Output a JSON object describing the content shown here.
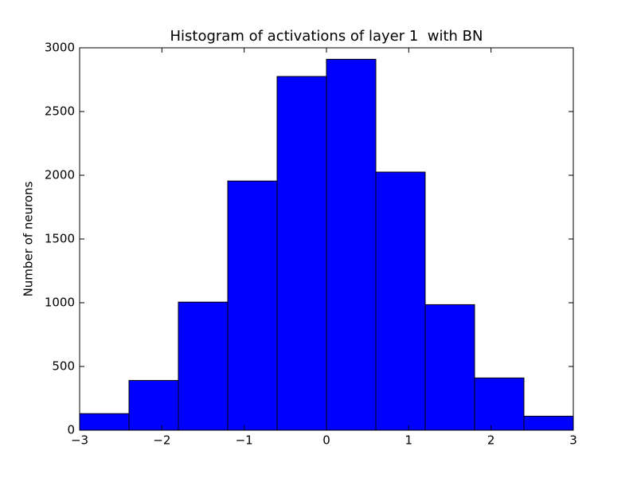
{
  "chart_data": {
    "type": "histogram",
    "title": "Histogram of activations of layer 1  with BN",
    "ylabel": "Number of neurons",
    "bins": [
      -3,
      -2.4,
      -1.8,
      -1.2,
      -0.6,
      0,
      0.6,
      1.2,
      1.8,
      2.4,
      3
    ],
    "values": [
      130,
      390,
      1005,
      1955,
      2775,
      2910,
      2025,
      985,
      410,
      110
    ],
    "color": "#0000ff",
    "xlim": [
      -3,
      3
    ],
    "xticks": [
      {
        "value": -3,
        "label": "−3"
      },
      {
        "value": -2,
        "label": "−2"
      },
      {
        "value": -1,
        "label": "−1"
      },
      0,
      1,
      2,
      3
    ],
    "ylim": [
      0,
      3000
    ],
    "yticks": [
      0,
      500,
      1000,
      1500,
      2000,
      2500,
      3000
    ]
  }
}
